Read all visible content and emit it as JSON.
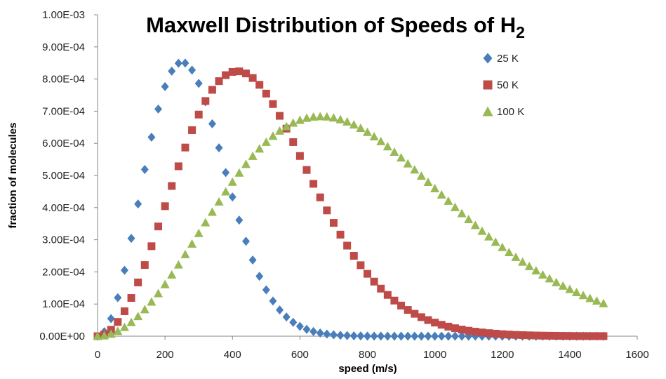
{
  "chart_data": {
    "type": "scatter",
    "title": "Maxwell Distribution of Speeds of H",
    "title_subscript": "2",
    "xlabel": "speed (m/s)",
    "ylabel": "fraction of molecules",
    "xlim": [
      0,
      1600
    ],
    "ylim": [
      0,
      0.001
    ],
    "x_ticks": [
      0,
      200,
      400,
      600,
      800,
      1000,
      1200,
      1400,
      1600
    ],
    "x_tick_labels": [
      "0",
      "200",
      "400",
      "600",
      "800",
      "1000",
      "1200",
      "1400",
      "1600"
    ],
    "y_ticks": [
      0,
      0.0001,
      0.0002,
      0.0003,
      0.0004,
      0.0005,
      0.0006,
      0.0007,
      0.0008,
      0.0009,
      0.001
    ],
    "y_tick_labels": [
      "0.00E+00",
      "1.00E-04",
      "2.00E-04",
      "3.00E-04",
      "4.00E-04",
      "5.00E-04",
      "6.00E-04",
      "7.00E-04",
      "8.00E-04",
      "9.00E-04",
      "1.00E-03"
    ],
    "grid": false,
    "legend_position": "top-right",
    "x": [
      0,
      20,
      40,
      60,
      80,
      100,
      120,
      140,
      160,
      180,
      200,
      220,
      240,
      260,
      280,
      300,
      320,
      340,
      360,
      380,
      400,
      420,
      440,
      460,
      480,
      500,
      520,
      540,
      560,
      580,
      600,
      620,
      640,
      660,
      680,
      700,
      720,
      740,
      760,
      780,
      800,
      820,
      840,
      860,
      880,
      900,
      920,
      940,
      960,
      980,
      1000,
      1020,
      1040,
      1060,
      1080,
      1100,
      1120,
      1140,
      1160,
      1180,
      1200,
      1220,
      1240,
      1260,
      1280,
      1300,
      1320,
      1340,
      1360,
      1380,
      1400,
      1420,
      1440,
      1460,
      1480,
      1500
    ],
    "series": [
      {
        "name": "25 K",
        "marker": "diamond",
        "color": "#4a7ebb",
        "values": [
          0,
          1.39e-05,
          5.47e-05,
          0.0001199,
          0.0002051,
          0.0003044,
          0.0004113,
          0.0005185,
          0.000619,
          0.0007067,
          0.0007764,
          0.0008245,
          0.000849,
          0.0008497,
          0.0008278,
          0.0007863,
          0.0007292,
          0.0006608,
          0.000586,
          0.0005089,
          0.000433,
          0.0003611,
          0.0002953,
          0.0002369,
          0.0001865,
          0.0001441,
          0.0001094,
          8.16e-05,
          5.98e-05,
          4.31e-05,
          3.05e-05,
          2.13e-05,
          1.46e-05,
          9.9e-06,
          6.6e-06,
          4.3e-06,
          2.8e-06,
          1.8e-06,
          1.1e-06,
          7e-07,
          4e-07,
          3e-07,
          2e-07,
          1e-07,
          1e-07,
          0,
          0,
          0,
          0,
          0,
          0,
          0,
          0,
          0,
          0,
          0,
          0,
          0,
          0,
          0,
          0,
          0,
          0,
          0,
          0,
          0,
          0,
          0,
          0,
          0,
          0,
          0,
          0,
          0,
          0,
          0
        ]
      },
      {
        "name": "50 K",
        "marker": "square",
        "color": "#be4b48",
        "values": [
          0,
          5e-06,
          1.99e-05,
          4.43e-05,
          7.76e-05,
          0.0001189,
          0.0001672,
          0.0002214,
          0.0002799,
          0.0003414,
          0.0004044,
          0.0004673,
          0.0005286,
          0.0005869,
          0.0006409,
          0.0006895,
          0.0007316,
          0.0007664,
          0.0007934,
          0.0008121,
          0.0008222,
          0.0008239,
          0.0008174,
          0.0008032,
          0.000782,
          0.0007547,
          0.0007222,
          0.0006855,
          0.0006457,
          0.0006038,
          0.0005606,
          0.0005171,
          0.000474,
          0.0004319,
          0.0003913,
          0.0003525,
          0.0003159,
          0.0002817,
          0.00025,
          0.0002208,
          0.0001941,
          0.0001698,
          0.0001479,
          0.0001283,
          0.0001108,
          9.53e-05,
          8.17e-05,
          6.97e-05,
          5.92e-05,
          5.01e-05,
          4.23e-05,
          3.55e-05,
          2.97e-05,
          2.48e-05,
          2.06e-05,
          1.71e-05,
          1.41e-05,
          1.16e-05,
          9.5e-06,
          7.8e-06,
          6.3e-06,
          5.1e-06,
          4.1e-06,
          3.3e-06,
          2.7e-06,
          2.1e-06,
          1.7e-06,
          1.4e-06,
          1.1e-06,
          9e-07,
          7e-07,
          5e-07,
          4e-07,
          3e-07,
          3e-07,
          2e-07
        ]
      },
      {
        "name": "100 K",
        "marker": "triangle",
        "color": "#98b954",
        "values": [
          0,
          1.8e-06,
          7.1e-06,
          1.59e-05,
          2.81e-05,
          4.35e-05,
          6.19e-05,
          8.32e-05,
          0.0001071,
          0.0001333,
          0.0001614,
          0.0001912,
          0.0002224,
          0.0002546,
          0.0002874,
          0.0003205,
          0.0003536,
          0.0003864,
          0.0004185,
          0.0004497,
          0.0004797,
          0.0005083,
          0.0005352,
          0.0005603,
          0.0005833,
          0.0006041,
          0.0006227,
          0.0006389,
          0.0006526,
          0.0006638,
          0.0006725,
          0.0006787,
          0.0006825,
          0.0006838,
          0.0006829,
          0.0006797,
          0.0006744,
          0.0006672,
          0.0006581,
          0.0006473,
          0.0006349,
          0.0006212,
          0.0006062,
          0.0005901,
          0.0005731,
          0.0005553,
          0.0005369,
          0.000518,
          0.0004987,
          0.0004792,
          0.0004596,
          0.0004401,
          0.0004206,
          0.0004013,
          0.0003822,
          0.0003635,
          0.0003452,
          0.0003273,
          0.0003099,
          0.0002931,
          0.0002768,
          0.000261,
          0.0002459,
          0.0002313,
          0.0002174,
          0.0002041,
          0.0001913,
          0.0001792,
          0.0001677,
          0.0001567,
          0.0001463,
          0.0001364,
          0.0001271,
          0.0001183,
          0.00011,
          0.0001021
        ]
      }
    ]
  }
}
